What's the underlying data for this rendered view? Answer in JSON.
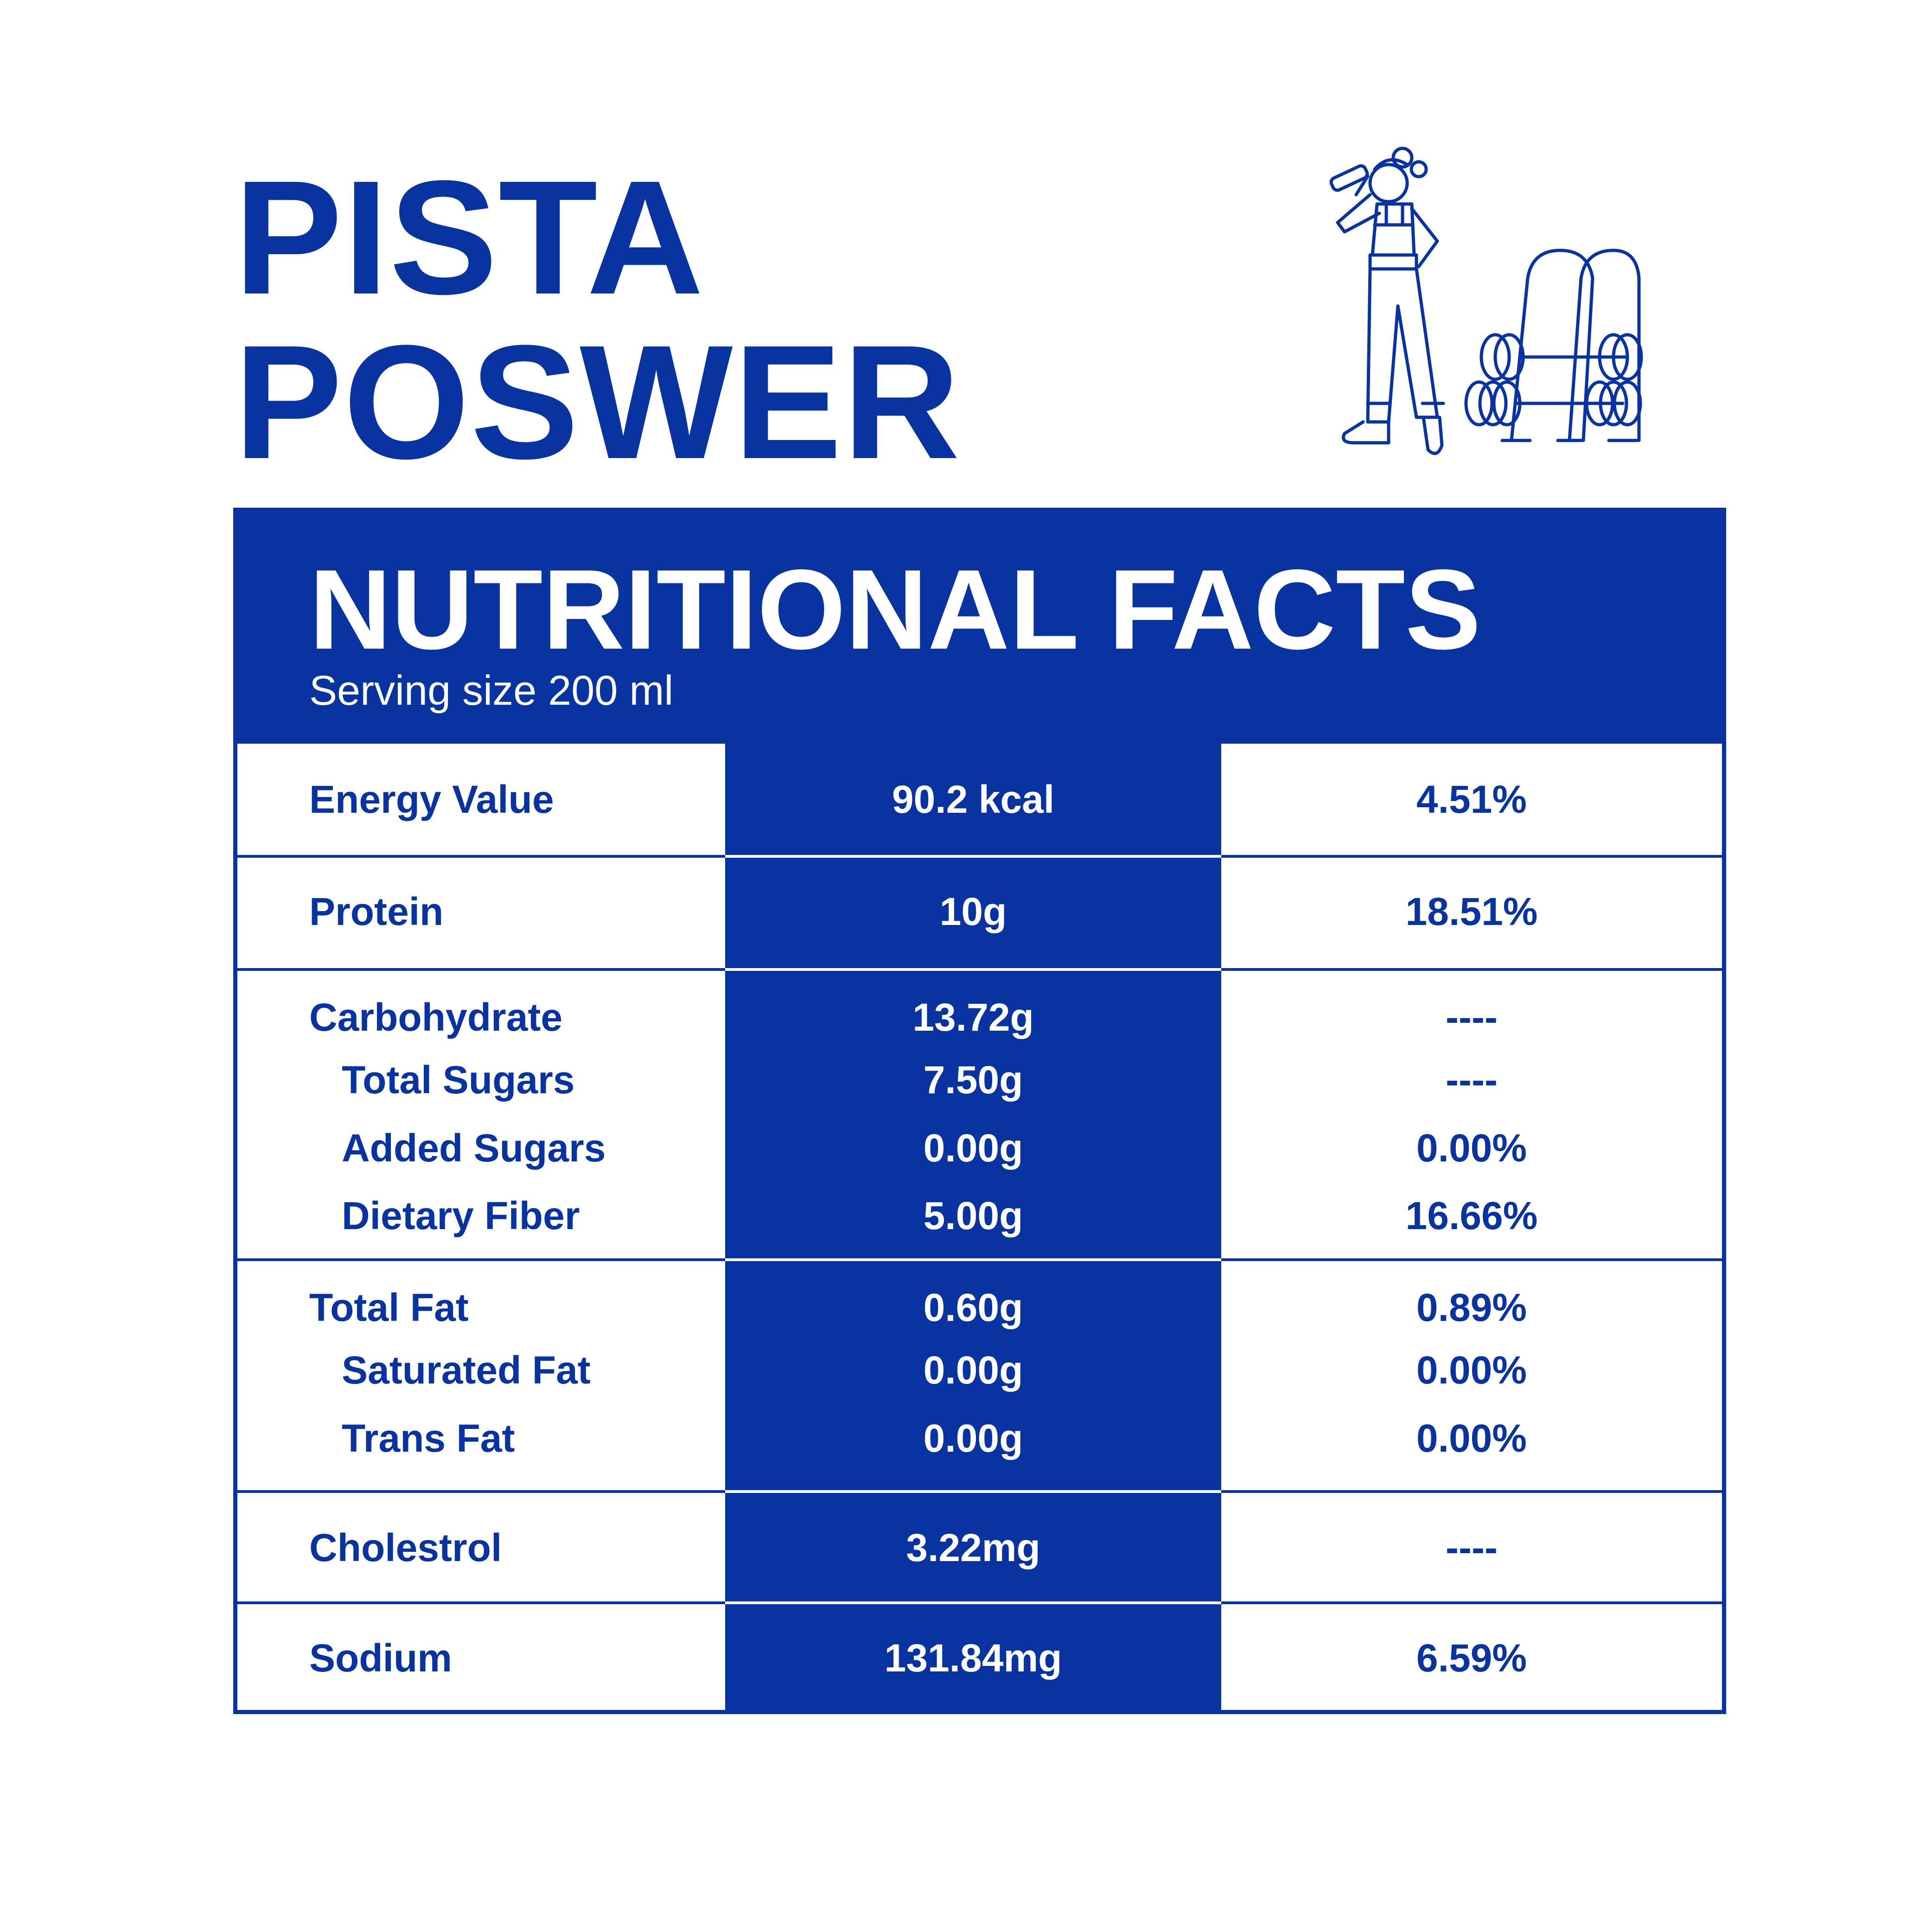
{
  "product": {
    "title_line1": "PISTA",
    "title_line2": "POSWER"
  },
  "panel": {
    "title": "NUTRITIONAL FACTS",
    "serving": "Serving size 200 ml"
  },
  "rows": [
    {
      "name": "Energy Value",
      "amount": "90.2 kcal",
      "dv": "4.51%"
    },
    {
      "name": "Protein",
      "amount": "10g",
      "dv": "18.51%"
    },
    {
      "name": "Carbohydrate",
      "amount": "13.72g",
      "dv": "----"
    },
    {
      "name": "Total Sugars",
      "amount": "7.50g",
      "dv": "----"
    },
    {
      "name": "Added Sugars",
      "amount": "0.00g",
      "dv": "0.00%"
    },
    {
      "name": "Dietary Fiber",
      "amount": "5.00g",
      "dv": "16.66%"
    },
    {
      "name": "Total Fat",
      "amount": "0.60g",
      "dv": "0.89%"
    },
    {
      "name": "Saturated Fat",
      "amount": "0.00g",
      "dv": "0.00%"
    },
    {
      "name": "Trans Fat",
      "amount": "0.00g",
      "dv": "0.00%"
    },
    {
      "name": "Cholestrol",
      "amount": "3.22mg",
      "dv": "----"
    },
    {
      "name": "Sodium",
      "amount": "131.84mg",
      "dv": "6.59%"
    }
  ],
  "illustration": {
    "icon": "woman-drinking-with-dumbbell-rack-illustration"
  },
  "colors": {
    "brand": "#0833a0",
    "background": "#ffffff"
  }
}
